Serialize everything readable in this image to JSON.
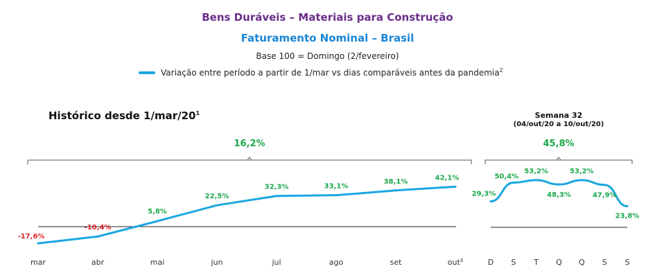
{
  "header": {
    "title": "Bens Duráveis – Materiais para Construção",
    "subtitle": "Faturamento Nominal – Brasil",
    "base": "Base 100 = Domingo (2/fevereiro)",
    "legend_label": "Variação entre período a partir de 1/mar vs dias comparáveis antes da pandemia",
    "legend_sup": "2",
    "series_color": "#1aa7e0",
    "positive_color": "#1aa84a",
    "negative_color": "#e2242a"
  },
  "chart_data": [
    {
      "type": "line",
      "title": "Histórico desde 1/mar/20",
      "title_sup": "1",
      "summary_label": "16,2%",
      "categories": [
        "mar",
        "abr",
        "mai",
        "jun",
        "jul",
        "ago",
        "set",
        "out"
      ],
      "category_sups": [
        "",
        "",
        "",
        "",
        "",
        "",
        "",
        "3"
      ],
      "values": [
        -17.6,
        -10.4,
        5.8,
        22.5,
        32.3,
        33.1,
        38.1,
        42.1
      ],
      "labels": [
        "-17,6%",
        "-10,4%",
        "5,8%",
        "22,5%",
        "32,3%",
        "33,1%",
        "38,1%",
        "42,1%"
      ],
      "baseline": 0,
      "ylim": [
        -20,
        50
      ]
    },
    {
      "type": "line",
      "title": "Semana 32",
      "subtitle": "(04/out/20 a 10/out/20)",
      "summary_label": "45,8%",
      "categories": [
        "D",
        "S",
        "T",
        "Q",
        "Q",
        "S",
        "S"
      ],
      "values": [
        29.3,
        50.4,
        53.2,
        48.3,
        53.2,
        47.9,
        23.8
      ],
      "labels": [
        "29,3%",
        "50,4%",
        "53,2%",
        "48,3%",
        "53,2%",
        "47,9%",
        "23,8%"
      ],
      "baseline": 0,
      "ylim": [
        0,
        60
      ]
    }
  ]
}
